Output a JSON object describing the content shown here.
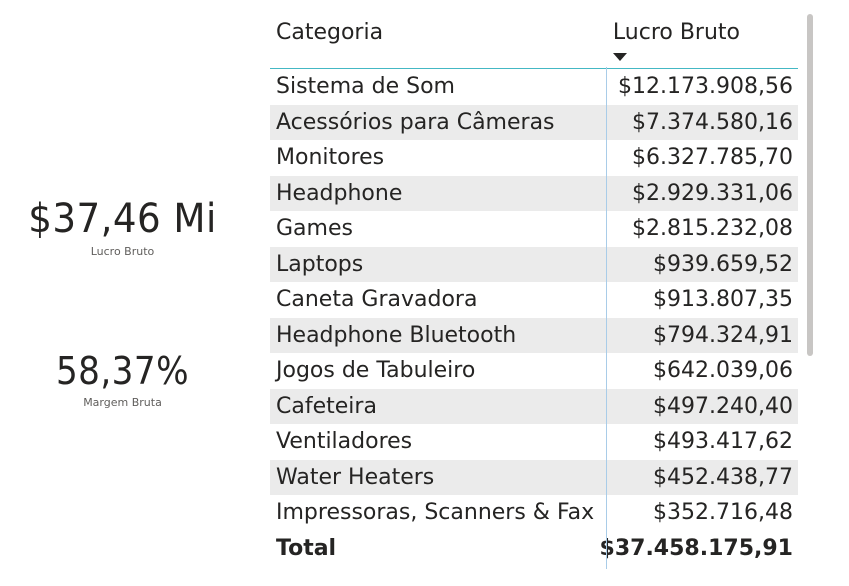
{
  "kpis": {
    "lucro_bruto": {
      "value": "$37,46 Mi",
      "label": "Lucro Bruto"
    },
    "margem_bruta": {
      "value": "58,37%",
      "label": "Margem Bruta"
    }
  },
  "table": {
    "headers": {
      "categoria": "Categoria",
      "lucro_bruto": "Lucro Bruto"
    },
    "sort": {
      "column": "Lucro Bruto",
      "direction": "descending"
    },
    "rows": [
      {
        "categoria": "Sistema de Som",
        "lucro_bruto": "$12.173.908,56"
      },
      {
        "categoria": "Acessórios para Câmeras",
        "lucro_bruto": "$7.374.580,16"
      },
      {
        "categoria": "Monitores",
        "lucro_bruto": "$6.327.785,70"
      },
      {
        "categoria": "Headphone",
        "lucro_bruto": "$2.929.331,06"
      },
      {
        "categoria": "Games",
        "lucro_bruto": "$2.815.232,08"
      },
      {
        "categoria": "Laptops",
        "lucro_bruto": "$939.659,52"
      },
      {
        "categoria": "Caneta Gravadora",
        "lucro_bruto": "$913.807,35"
      },
      {
        "categoria": "Headphone Bluetooth",
        "lucro_bruto": "$794.324,91"
      },
      {
        "categoria": "Jogos de Tabuleiro",
        "lucro_bruto": "$642.039,06"
      },
      {
        "categoria": "Cafeteira",
        "lucro_bruto": "$497.240,40"
      },
      {
        "categoria": "Ventiladores",
        "lucro_bruto": "$493.417,62"
      },
      {
        "categoria": "Water Heaters",
        "lucro_bruto": "$452.438,77"
      },
      {
        "categoria": "Impressoras, Scanners & Fax",
        "lucro_bruto": "$352.716,48"
      }
    ],
    "total": {
      "label": "Total",
      "value": "$37.458.175,91"
    }
  },
  "colors": {
    "text": "#252423",
    "muted_text": "#605e5c",
    "header_border": "#44b8c4",
    "alt_row": "#ebebeb",
    "column_divider": "#a9cce8",
    "scrollbar": "#c8c6c4"
  },
  "icons": {
    "sort": "sort-descending-icon"
  }
}
